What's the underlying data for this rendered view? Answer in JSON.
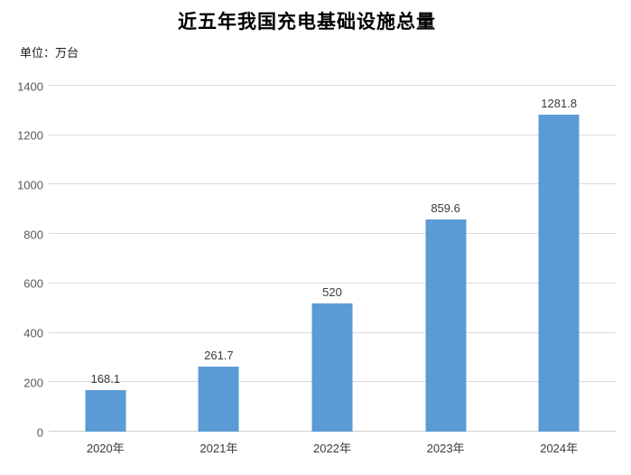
{
  "title": "近五年我国充电基础设施总量",
  "unit_label": "单位：万台",
  "chart_data": {
    "type": "bar",
    "title": "近五年我国充电基础设施总量",
    "subtitle": "",
    "unit": "万台",
    "categories": [
      "2020年",
      "2021年",
      "2022年",
      "2023年",
      "2024年"
    ],
    "values": [
      168.1,
      261.7,
      520,
      859.6,
      1281.8
    ],
    "data_labels": [
      "168.1",
      "261.7",
      "520",
      "859.6",
      "1281.8"
    ],
    "xlabel": "",
    "ylabel": "",
    "ylim": [
      0,
      1400
    ],
    "yticks": [
      0,
      200,
      400,
      600,
      800,
      1000,
      1200,
      1400
    ],
    "grid": true,
    "legend_position": "none",
    "colors": {
      "bar_fill": "#5B9BD5",
      "gridline": "#D9D9D9",
      "axis_line": "#CFCFCF",
      "y_tick_label": "#595959",
      "x_tick_label": "#3B3B3B",
      "data_label": "#3B3B3B",
      "title": "#000000",
      "background": "#FFFFFF"
    }
  }
}
